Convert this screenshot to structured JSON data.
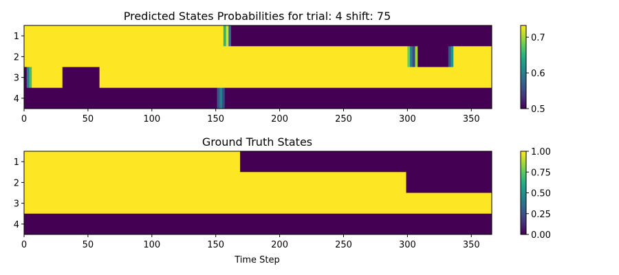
{
  "colors": {
    "low": "#440154",
    "high": "#fde725",
    "viridis": [
      "#440154",
      "#472d7b",
      "#3b528b",
      "#2c728e",
      "#21918c",
      "#28ae80",
      "#5ec962",
      "#addc30",
      "#fde725"
    ]
  },
  "chart_data": [
    {
      "type": "heatmap",
      "title": "Predicted States Probabilities for trial: 4 shift: 75",
      "xlabel": "",
      "ylabel": "",
      "rows": [
        "1",
        "2",
        "3",
        "4"
      ],
      "n_steps": 366,
      "xlim": [
        0,
        366
      ],
      "xticks": [
        0,
        50,
        100,
        150,
        200,
        250,
        300,
        350
      ],
      "colorbar": {
        "vmin": 0.5,
        "vmax": 0.733,
        "ticks": [
          0.5,
          0.6,
          0.7
        ],
        "tick_labels": [
          "0.5",
          "0.6",
          "0.7"
        ]
      },
      "segments": {
        "1": [
          {
            "start": 0,
            "end": 156,
            "value": 0.733
          },
          {
            "start": 156,
            "end": 158,
            "value": 0.65
          },
          {
            "start": 158,
            "end": 160,
            "value": 0.72
          },
          {
            "start": 160,
            "end": 162,
            "value": 0.58
          },
          {
            "start": 162,
            "end": 366,
            "value": 0.5
          }
        ],
        "2": [
          {
            "start": 0,
            "end": 300,
            "value": 0.733
          },
          {
            "start": 300,
            "end": 302,
            "value": 0.68
          },
          {
            "start": 302,
            "end": 304,
            "value": 0.6
          },
          {
            "start": 304,
            "end": 306,
            "value": 0.55
          },
          {
            "start": 306,
            "end": 308,
            "value": 0.7
          },
          {
            "start": 308,
            "end": 332,
            "value": 0.5
          },
          {
            "start": 332,
            "end": 334,
            "value": 0.56
          },
          {
            "start": 334,
            "end": 336,
            "value": 0.62
          },
          {
            "start": 336,
            "end": 366,
            "value": 0.733
          }
        ],
        "3": [
          {
            "start": 0,
            "end": 2,
            "value": 0.5
          },
          {
            "start": 2,
            "end": 4,
            "value": 0.6
          },
          {
            "start": 4,
            "end": 6,
            "value": 0.66
          },
          {
            "start": 6,
            "end": 30,
            "value": 0.733
          },
          {
            "start": 30,
            "end": 59,
            "value": 0.5
          },
          {
            "start": 59,
            "end": 366,
            "value": 0.733
          }
        ],
        "4": [
          {
            "start": 0,
            "end": 151,
            "value": 0.5
          },
          {
            "start": 151,
            "end": 153,
            "value": 0.56
          },
          {
            "start": 153,
            "end": 155,
            "value": 0.6
          },
          {
            "start": 155,
            "end": 157,
            "value": 0.55
          },
          {
            "start": 157,
            "end": 366,
            "value": 0.5
          }
        ]
      }
    },
    {
      "type": "heatmap",
      "title": "Ground Truth States",
      "xlabel": "Time Step",
      "ylabel": "",
      "rows": [
        "1",
        "2",
        "3",
        "4"
      ],
      "n_steps": 366,
      "xlim": [
        0,
        366
      ],
      "xticks": [
        0,
        50,
        100,
        150,
        200,
        250,
        300,
        350
      ],
      "colorbar": {
        "vmin": 0,
        "vmax": 1,
        "ticks": [
          0,
          0.25,
          0.5,
          0.75,
          1
        ],
        "tick_labels": [
          "0.00",
          "0.25",
          "0.50",
          "0.75",
          "1.00"
        ]
      },
      "segments": {
        "1": [
          {
            "start": 0,
            "end": 169,
            "value": 1
          },
          {
            "start": 169,
            "end": 366,
            "value": 0
          }
        ],
        "2": [
          {
            "start": 0,
            "end": 299,
            "value": 1
          },
          {
            "start": 299,
            "end": 366,
            "value": 0
          }
        ],
        "3": [
          {
            "start": 0,
            "end": 366,
            "value": 1
          }
        ],
        "4": [
          {
            "start": 0,
            "end": 366,
            "value": 0
          }
        ]
      }
    }
  ]
}
